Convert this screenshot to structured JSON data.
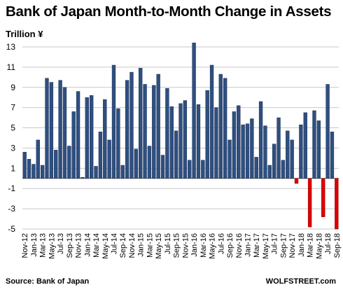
{
  "chart_data": {
    "type": "bar",
    "title": "Bank of Japan Month-to-Month Change in Assets",
    "ylabel": "Trillion ¥",
    "source": "Source: Bank of Japan",
    "brand": "WOLFSTREET.com",
    "ylim": [
      -5,
      13.6
    ],
    "yticks": [
      -5,
      -3,
      -1,
      1,
      3,
      5,
      7,
      9,
      11,
      13
    ],
    "grid": true,
    "colors": {
      "positive": "#2f4f80",
      "negative": "#dd0000"
    },
    "categories": [
      "Nov-12",
      "Dec-12",
      "Jan-13",
      "Feb-13",
      "Mar-13",
      "Apr-13",
      "May-13",
      "Jun-13",
      "Jul-13",
      "Aug-13",
      "Sep-13",
      "Oct-13",
      "Nov-13",
      "Dec-13",
      "Jan-14",
      "Feb-14",
      "Mar-14",
      "Apr-14",
      "May-14",
      "Jun-14",
      "Jul-14",
      "Aug-14",
      "Sep-14",
      "Oct-14",
      "Nov-14",
      "Dec-14",
      "Jan-15",
      "Feb-15",
      "Mar-15",
      "Apr-15",
      "May-15",
      "Jun-15",
      "Jul-15",
      "Aug-15",
      "Sep-15",
      "Oct-15",
      "Nov-15",
      "Dec-15",
      "Jan-16",
      "Feb-16",
      "Mar-16",
      "Apr-16",
      "May-16",
      "Jun-16",
      "Jul-16",
      "Aug-16",
      "Sep-16",
      "Oct-16",
      "Nov-16",
      "Dec-16",
      "Jan-17",
      "Feb-17",
      "Mar-17",
      "Apr-17",
      "May-17",
      "Jun-17",
      "Jul-17",
      "Aug-17",
      "Sep-17",
      "Oct-17",
      "Nov-17",
      "Dec-17",
      "Jan-18",
      "Feb-18",
      "Mar-18",
      "Apr-18",
      "May-18",
      "Jun-18",
      "Jul-18",
      "Aug-18",
      "Sep-18"
    ],
    "xtick_labels": [
      "Nov-12",
      "Jan-13",
      "Mar-13",
      "May-13",
      "Jul-13",
      "Sep-13",
      "Nov-13",
      "Jan-14",
      "Mar-14",
      "May-14",
      "Jul-14",
      "Sep-14",
      "Nov-14",
      "Jan-15",
      "Mar-15",
      "May-15",
      "Jul-15",
      "Sep-15",
      "Nov-15",
      "Jan-16",
      "Mar-16",
      "May-16",
      "Jul-16",
      "Sep-16",
      "Nov-16",
      "Jan-17",
      "Mar-17",
      "May-17",
      "Jul-17",
      "Sep-17",
      "Nov-17",
      "Jan-18",
      "Mar-18",
      "May-18",
      "Jul-18",
      "Sep-18"
    ],
    "values": [
      2.6,
      1.9,
      1.4,
      3.8,
      1.3,
      9.9,
      9.5,
      2.8,
      9.7,
      9.0,
      3.2,
      6.6,
      8.6,
      0.1,
      8.0,
      8.2,
      1.2,
      4.6,
      7.8,
      3.8,
      11.2,
      6.9,
      1.3,
      9.7,
      10.5,
      2.9,
      10.9,
      9.3,
      3.2,
      9.2,
      10.3,
      2.3,
      8.9,
      7.1,
      4.7,
      7.4,
      7.7,
      1.8,
      13.4,
      7.3,
      1.8,
      8.7,
      11.2,
      7.0,
      10.3,
      9.9,
      3.8,
      6.6,
      7.2,
      5.3,
      5.4,
      5.9,
      2.1,
      7.6,
      5.2,
      1.3,
      3.4,
      6.0,
      1.8,
      4.7,
      3.8,
      -0.5,
      5.3,
      6.5,
      -4.8,
      6.7,
      5.7,
      -3.8,
      9.3,
      4.6,
      -5.0
    ]
  }
}
